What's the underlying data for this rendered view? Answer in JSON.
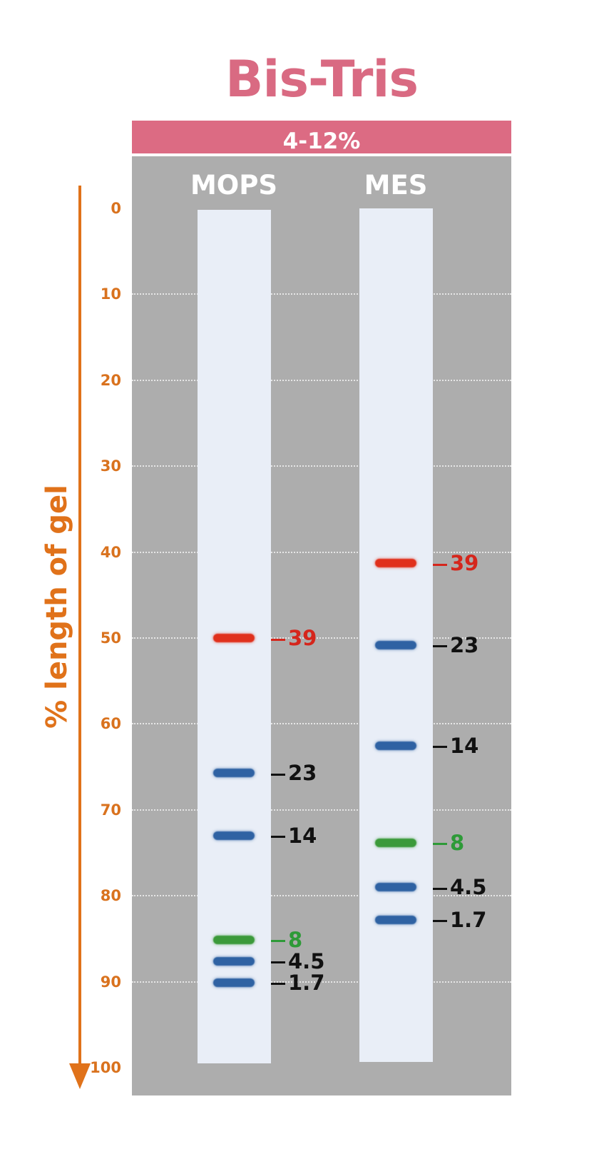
{
  "title": "Bis-Tris",
  "gel_percentage": "4-12%",
  "axis": {
    "title": "% length of gel",
    "ticks": [
      "0",
      "10",
      "20",
      "30",
      "40",
      "50",
      "60",
      "70",
      "80",
      "90",
      "100"
    ]
  },
  "colors": {
    "title": "#d96a82",
    "header_bar": "#dc6b83",
    "axis": "#e0721a",
    "gel_background": "#adadad",
    "lane": "#e9eef7",
    "band_blue": "#2f62a3",
    "band_red": "#e0301c",
    "band_green": "#3b9a3a"
  },
  "lanes": [
    {
      "name": "MOPS",
      "bands": [
        {
          "label": "39",
          "position": 50.0,
          "color": "red"
        },
        {
          "label": "23",
          "position": 65.7,
          "color": "blue"
        },
        {
          "label": "14",
          "position": 73.0,
          "color": "blue"
        },
        {
          "label": "8",
          "position": 85.1,
          "color": "green"
        },
        {
          "label": "4.5",
          "position": 87.6,
          "color": "blue"
        },
        {
          "label": "1.7",
          "position": 90.1,
          "color": "blue"
        }
      ]
    },
    {
      "name": "MES",
      "bands": [
        {
          "label": "39",
          "position": 41.3,
          "color": "red"
        },
        {
          "label": "23",
          "position": 50.8,
          "color": "blue"
        },
        {
          "label": "14",
          "position": 62.5,
          "color": "blue"
        },
        {
          "label": "8",
          "position": 73.8,
          "color": "green"
        },
        {
          "label": "4.5",
          "position": 79.0,
          "color": "blue"
        },
        {
          "label": "1.7",
          "position": 82.8,
          "color": "blue"
        }
      ]
    }
  ]
}
